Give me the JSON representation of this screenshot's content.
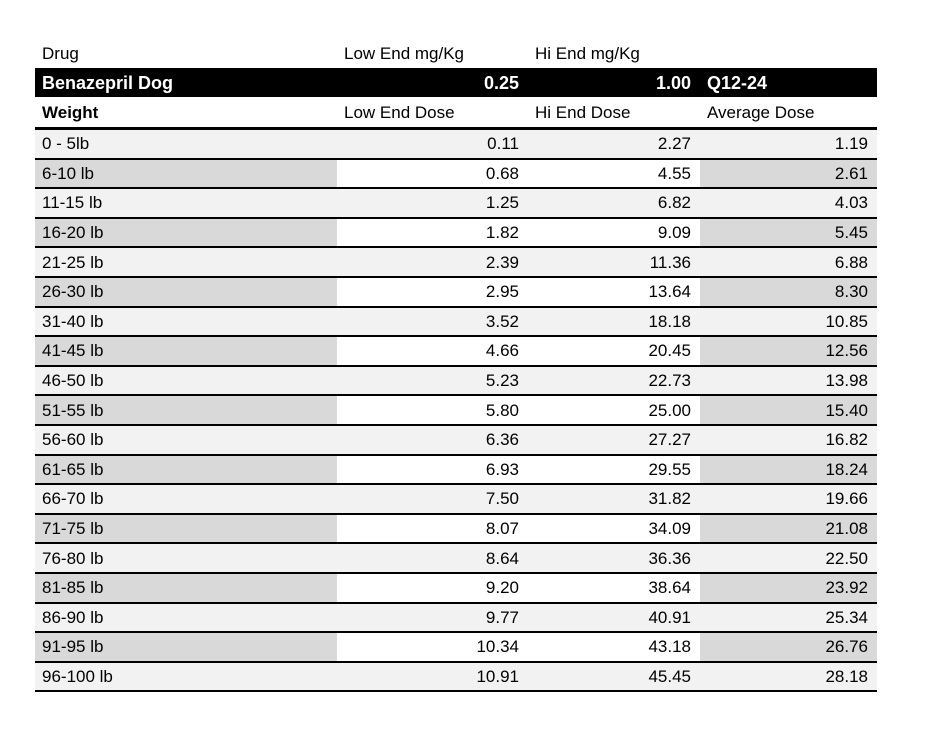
{
  "table": {
    "drug_header": {
      "drug_label": "Drug",
      "low_end_label": "Low End mg/Kg",
      "hi_end_label": "Hi End mg/Kg"
    },
    "drug_row": {
      "name": "Benazepril Dog",
      "low_end_mg_kg": "0.25",
      "hi_end_mg_kg": "1.00",
      "frequency": "Q12-24"
    },
    "dose_header": {
      "weight_label": "Weight",
      "low_end_label": "Low End Dose",
      "hi_end_label": "Hi End Dose",
      "average_label": "Average Dose"
    },
    "rows": [
      {
        "weight": "0 - 5lb",
        "low": "0.11",
        "hi": "2.27",
        "avg": "1.19"
      },
      {
        "weight": "6-10 lb",
        "low": "0.68",
        "hi": "4.55",
        "avg": "2.61"
      },
      {
        "weight": "11-15 lb",
        "low": "1.25",
        "hi": "6.82",
        "avg": "4.03"
      },
      {
        "weight": "16-20 lb",
        "low": "1.82",
        "hi": "9.09",
        "avg": "5.45"
      },
      {
        "weight": "21-25 lb",
        "low": "2.39",
        "hi": "11.36",
        "avg": "6.88"
      },
      {
        "weight": "26-30 lb",
        "low": "2.95",
        "hi": "13.64",
        "avg": "8.30"
      },
      {
        "weight": "31-40 lb",
        "low": "3.52",
        "hi": "18.18",
        "avg": "10.85"
      },
      {
        "weight": "41-45 lb",
        "low": "4.66",
        "hi": "20.45",
        "avg": "12.56"
      },
      {
        "weight": "46-50 lb",
        "low": "5.23",
        "hi": "22.73",
        "avg": "13.98"
      },
      {
        "weight": "51-55 lb",
        "low": "5.80",
        "hi": "25.00",
        "avg": "15.40"
      },
      {
        "weight": "56-60 lb",
        "low": "6.36",
        "hi": "27.27",
        "avg": "16.82"
      },
      {
        "weight": "61-65 lb",
        "low": "6.93",
        "hi": "29.55",
        "avg": "18.24"
      },
      {
        "weight": "66-70 lb",
        "low": "7.50",
        "hi": "31.82",
        "avg": "19.66"
      },
      {
        "weight": "71-75 lb",
        "low": "8.07",
        "hi": "34.09",
        "avg": "21.08"
      },
      {
        "weight": "76-80 lb",
        "low": "8.64",
        "hi": "36.36",
        "avg": "22.50"
      },
      {
        "weight": "81-85 lb",
        "low": "9.20",
        "hi": "38.64",
        "avg": "23.92"
      },
      {
        "weight": "86-90 lb",
        "low": "9.77",
        "hi": "40.91",
        "avg": "25.34"
      },
      {
        "weight": "91-95 lb",
        "low": "10.34",
        "hi": "43.18",
        "avg": "26.76"
      },
      {
        "weight": "96-100 lb",
        "low": "10.91",
        "hi": "45.45",
        "avg": "28.18"
      }
    ]
  },
  "colors": {
    "header_bg": "#000000",
    "header_text": "#ffffff",
    "row_light": "#f2f2f2",
    "row_dark": "#d9d9d9",
    "border": "#000000"
  }
}
